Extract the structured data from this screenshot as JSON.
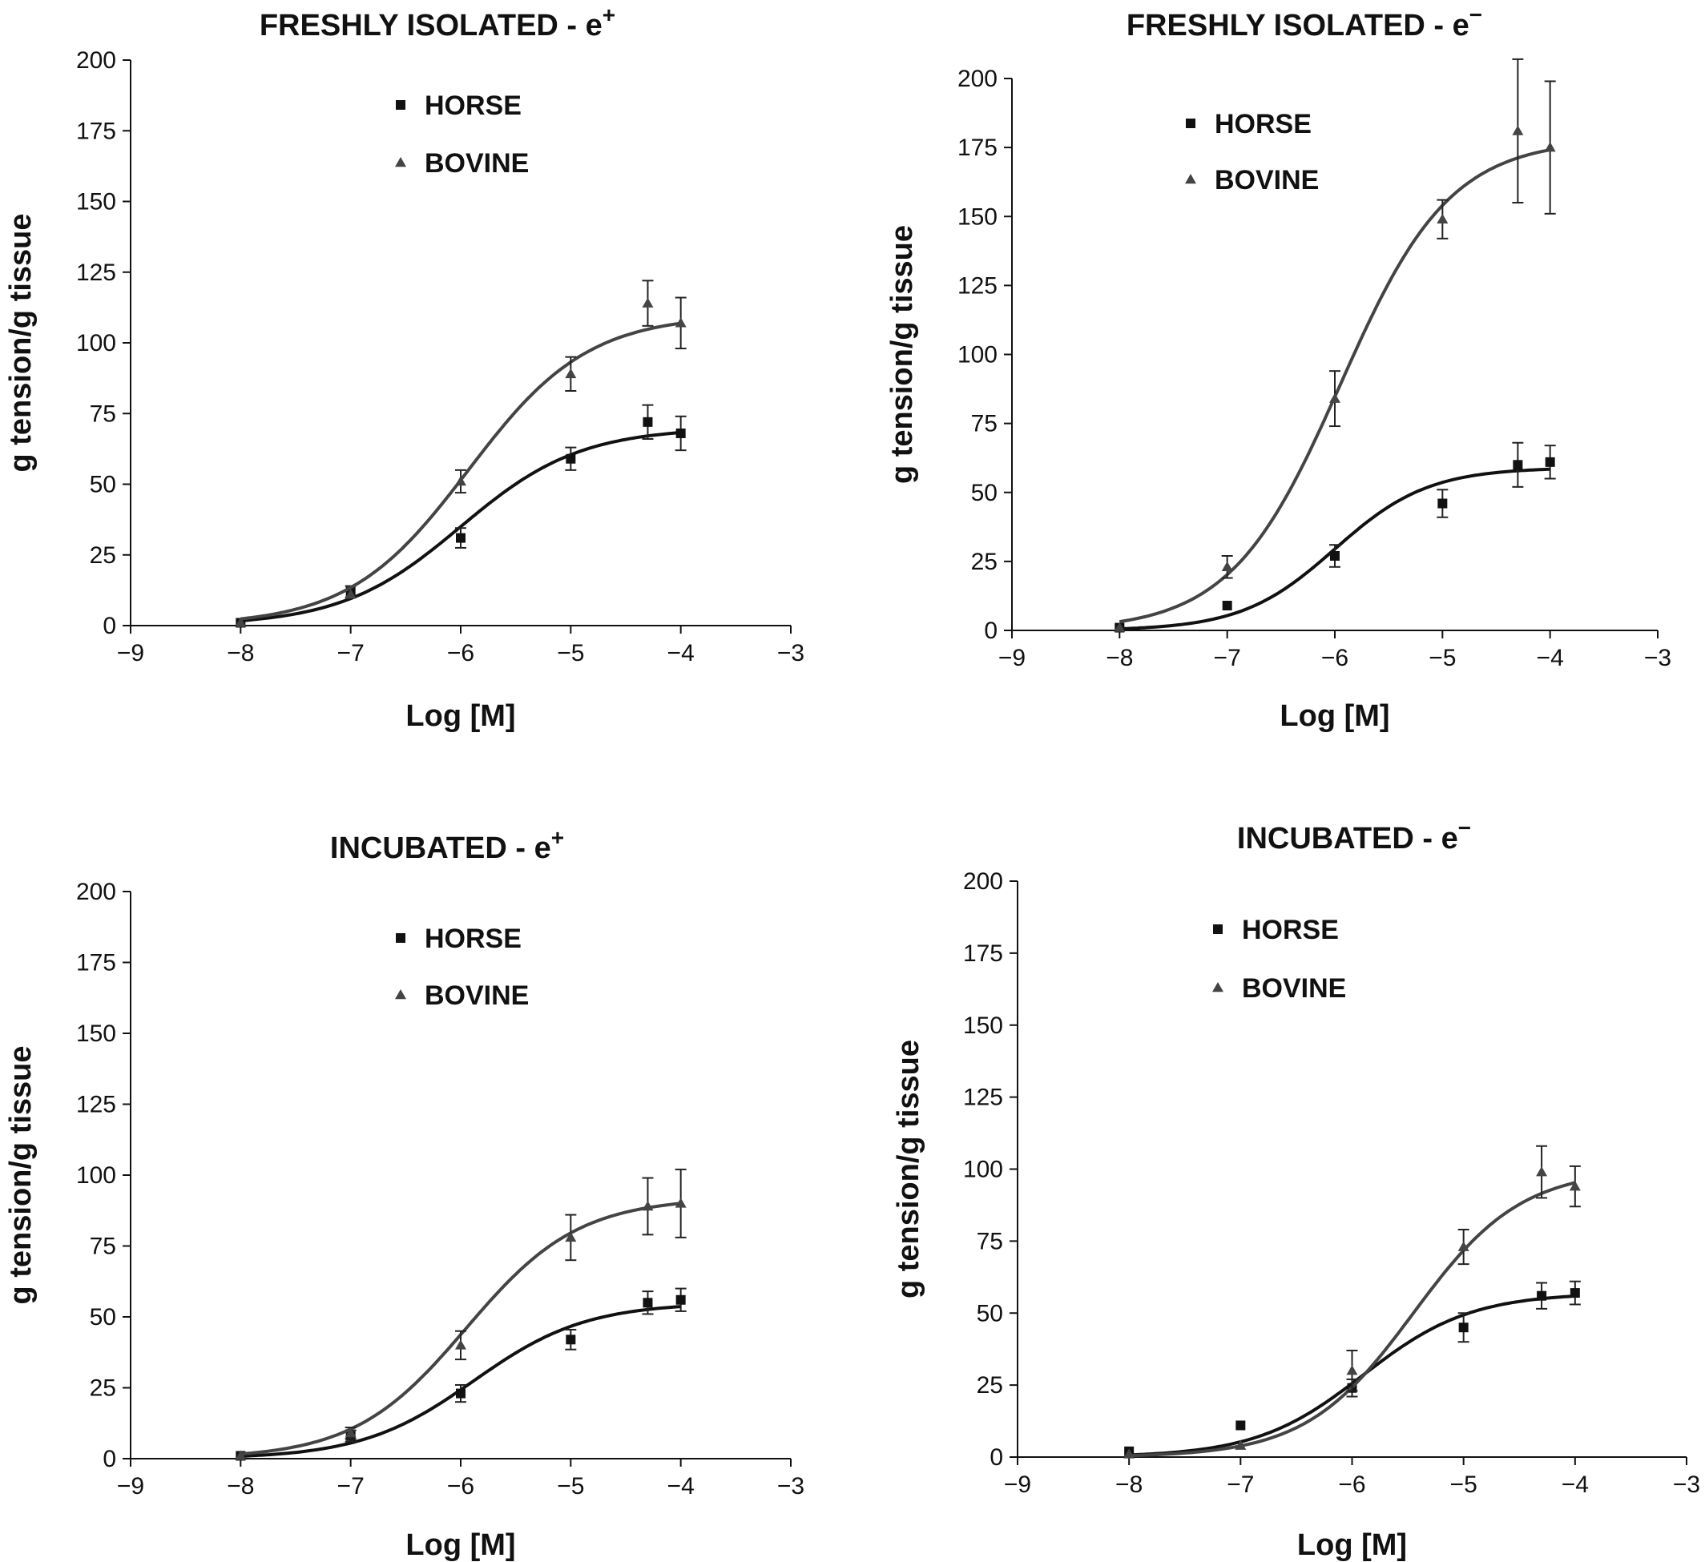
{
  "chart_data": [
    {
      "type": "scatter",
      "title_main": "FRESHLY ISOLATED - e",
      "title_sup": "+",
      "xlabel": "Log [M]",
      "ylabel": "g tension/g tissue",
      "xlim": [
        -9,
        -3
      ],
      "ylim": [
        0,
        200
      ],
      "xticks": [
        "−9",
        "−8",
        "−7",
        "−6",
        "−5",
        "−4",
        "−3"
      ],
      "yticks": [
        "0",
        "25",
        "50",
        "75",
        "100",
        "125",
        "150",
        "175",
        "200"
      ],
      "legend_position": "top-center",
      "series": [
        {
          "name": "HORSE",
          "marker": "square",
          "color": "#111111",
          "x": [
            -8,
            -7,
            -6,
            -5,
            -4.3,
            -4
          ],
          "y": [
            1,
            12,
            31,
            59,
            72,
            68
          ],
          "err": [
            0,
            2,
            3.5,
            4,
            6,
            6
          ],
          "curve": {
            "bottom": 0,
            "top": 70,
            "ec50_log": -6.0,
            "hill": 0.8
          }
        },
        {
          "name": "BOVINE",
          "marker": "triangle",
          "color": "#444444",
          "x": [
            -8,
            -7,
            -6,
            -5,
            -4.3,
            -4
          ],
          "y": [
            1,
            11,
            51,
            89,
            114,
            107
          ],
          "err": [
            0,
            0,
            4,
            6,
            8,
            9
          ],
          "curve": {
            "bottom": 0,
            "top": 110,
            "ec50_log": -5.93,
            "hill": 0.8
          }
        }
      ]
    },
    {
      "type": "scatter",
      "title_main": "FRESHLY ISOLATED - e",
      "title_sup": "−",
      "xlabel": "Log [M]",
      "ylabel": "g tension/g tissue",
      "xlim": [
        -9,
        -3
      ],
      "ylim": [
        0,
        200
      ],
      "xticks": [
        "−9",
        "−8",
        "−7",
        "−6",
        "−5",
        "−4",
        "−3"
      ],
      "yticks": [
        "0",
        "25",
        "50",
        "75",
        "100",
        "125",
        "150",
        "175",
        "200"
      ],
      "legend_position": "top-center",
      "series": [
        {
          "name": "HORSE",
          "marker": "square",
          "color": "#111111",
          "x": [
            -8,
            -7,
            -6,
            -5,
            -4.3,
            -4
          ],
          "y": [
            1,
            9,
            27,
            46,
            60,
            61
          ],
          "err": [
            0,
            0,
            4,
            5,
            8,
            6
          ],
          "curve": {
            "bottom": 0,
            "top": 59,
            "ec50_log": -6.0,
            "hill": 1.0
          }
        },
        {
          "name": "BOVINE",
          "marker": "triangle",
          "color": "#444444",
          "x": [
            -8,
            -7,
            -6,
            -5,
            -4.3,
            -4
          ],
          "y": [
            1,
            23,
            84,
            149,
            181,
            175
          ],
          "err": [
            0,
            4,
            10,
            7,
            26,
            24
          ],
          "curve": {
            "bottom": 0,
            "top": 178,
            "ec50_log": -5.95,
            "hill": 0.85
          }
        }
      ]
    },
    {
      "type": "scatter",
      "title_main": "INCUBATED - e",
      "title_sup": "+",
      "xlabel": "Log [M]",
      "ylabel": "g tension/g tissue",
      "xlim": [
        -9,
        -3
      ],
      "ylim": [
        0,
        200
      ],
      "xticks": [
        "−9",
        "−8",
        "−7",
        "−6",
        "−5",
        "−4",
        "−3"
      ],
      "yticks": [
        "0",
        "25",
        "50",
        "75",
        "100",
        "125",
        "150",
        "175",
        "200"
      ],
      "legend_position": "top-center",
      "series": [
        {
          "name": "HORSE",
          "marker": "square",
          "color": "#111111",
          "x": [
            -8,
            -7,
            -6,
            -5,
            -4.3,
            -4
          ],
          "y": [
            1,
            8,
            23,
            42,
            55,
            56
          ],
          "err": [
            0,
            2,
            3,
            3.5,
            4,
            4
          ],
          "curve": {
            "bottom": 0,
            "top": 55,
            "ec50_log": -5.88,
            "hill": 0.85
          }
        },
        {
          "name": "BOVINE",
          "marker": "triangle",
          "color": "#444444",
          "x": [
            -8,
            -7,
            -6,
            -5,
            -4.3,
            -4
          ],
          "y": [
            1,
            9,
            40,
            78,
            89,
            90
          ],
          "err": [
            0,
            2,
            5,
            8,
            10,
            12
          ],
          "curve": {
            "bottom": 0,
            "top": 92,
            "ec50_log": -5.95,
            "hill": 0.85
          }
        }
      ]
    },
    {
      "type": "scatter",
      "title_main": "INCUBATED - e",
      "title_sup": "−",
      "xlabel": "Log [M]",
      "ylabel": "g tension/g tissue",
      "xlim": [
        -9,
        -3
      ],
      "ylim": [
        0,
        200
      ],
      "xticks": [
        "−9",
        "−8",
        "−7",
        "−6",
        "−5",
        "−4",
        "−3"
      ],
      "yticks": [
        "0",
        "25",
        "50",
        "75",
        "100",
        "125",
        "150",
        "175",
        "200"
      ],
      "legend_position": "top-center",
      "series": [
        {
          "name": "HORSE",
          "marker": "square",
          "color": "#111111",
          "x": [
            -8,
            -7,
            -6,
            -5,
            -4.3,
            -4
          ],
          "y": [
            2,
            11,
            24,
            45,
            56,
            57
          ],
          "err": [
            0,
            0,
            3,
            5,
            4.5,
            4
          ],
          "curve": {
            "bottom": 0,
            "top": 57,
            "ec50_log": -5.9,
            "hill": 0.9
          }
        },
        {
          "name": "BOVINE",
          "marker": "triangle",
          "color": "#444444",
          "x": [
            -8,
            -7,
            -6,
            -5,
            -4.3,
            -4
          ],
          "y": [
            1,
            4,
            30,
            73,
            99,
            94
          ],
          "err": [
            0,
            0,
            7,
            6,
            9,
            7
          ],
          "curve": {
            "bottom": 0,
            "top": 100,
            "ec50_log": -5.45,
            "hill": 0.9
          }
        }
      ]
    }
  ]
}
